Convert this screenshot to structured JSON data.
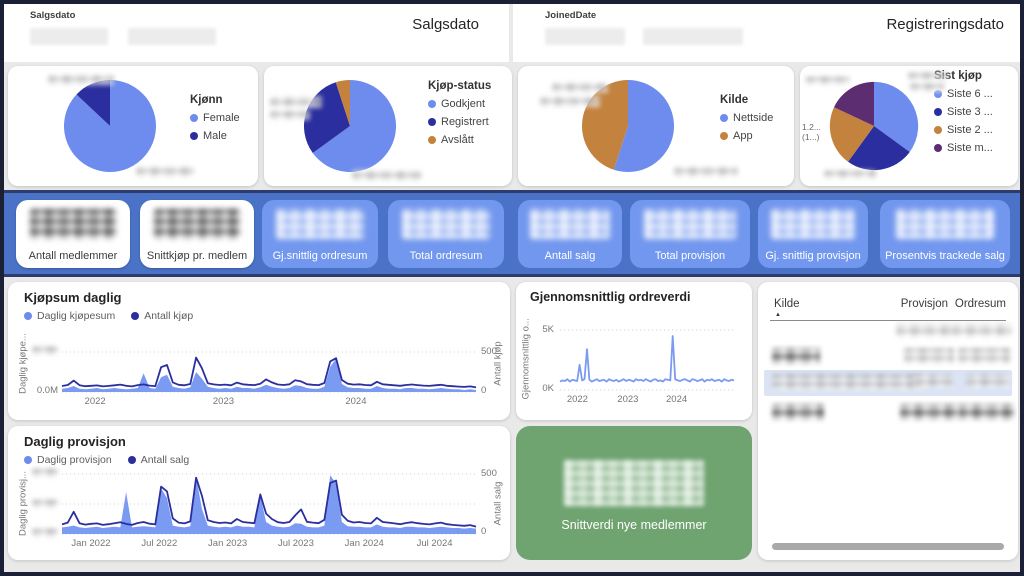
{
  "slicers": {
    "sales": {
      "field_label": "Salgsdato",
      "title": "Salgsdato"
    },
    "joined": {
      "field_label": "JoinedDate",
      "title": "Registreringsdato"
    }
  },
  "pies": [
    {
      "id": "kjonn",
      "legend_title": "Kjønn",
      "slices": [
        {
          "label": "Female",
          "value": 87,
          "color": "#6d8cee"
        },
        {
          "label": "Male",
          "value": 13,
          "color": "#2b2e9e"
        }
      ]
    },
    {
      "id": "kjopstatus",
      "legend_title": "Kjøp-status",
      "slices": [
        {
          "label": "Godkjent",
          "value": 65,
          "color": "#6d8cee"
        },
        {
          "label": "Registrert",
          "value": 30,
          "color": "#2b2e9e"
        },
        {
          "label": "Avslått",
          "value": 5,
          "color": "#c4823f"
        }
      ]
    },
    {
      "id": "kilde",
      "legend_title": "Kilde",
      "slices": [
        {
          "label": "Nettside",
          "value": 55,
          "color": "#6d8cee"
        },
        {
          "label": "App",
          "value": 45,
          "color": "#c4823f"
        }
      ]
    },
    {
      "id": "sistkjop",
      "legend_title": "Sist kjøp",
      "visible_callout": "1.2...\n(1...)",
      "slices": [
        {
          "label": "Siste 6 ...",
          "value": 35,
          "color": "#6d8cee"
        },
        {
          "label": "Siste 3 ...",
          "value": 25,
          "color": "#2b2e9e"
        },
        {
          "label": "Siste 2 ...",
          "value": 22,
          "color": "#c4823f"
        },
        {
          "label": "Siste m...",
          "value": 18,
          "color": "#5c2d70"
        }
      ]
    }
  ],
  "kpis": [
    {
      "label": "Antall medlemmer",
      "style": "white"
    },
    {
      "label": "Snittkjøp pr. medlem",
      "style": "white"
    },
    {
      "label": "Gj.snittlig ordresum",
      "style": "blue"
    },
    {
      "label": "Total ordresum",
      "style": "blue"
    },
    {
      "label": "Antall salg",
      "style": "blue"
    },
    {
      "label": "Total provisjon",
      "style": "blue"
    },
    {
      "label": "Gj. snittlig provisjon",
      "style": "blue"
    },
    {
      "label": "Prosentvis trackede salg",
      "style": "blue"
    }
  ],
  "chart_data": [
    {
      "id": "kjopsum",
      "type": "area",
      "title": "Kjøpsum daglig",
      "legend": [
        {
          "label": "Daglig kjøpesum",
          "color": "#6d8cee"
        },
        {
          "label": "Antall kjøp",
          "color": "#2b2e9e"
        }
      ],
      "y_left": {
        "label": "Daglig kjøpe...",
        "max": 0.6,
        "ticks": [
          "0.0M"
        ],
        "top_tick_redacted": true
      },
      "y_right": {
        "label": "Antall kjøp",
        "max": 500,
        "ticks": [
          "500",
          "0"
        ]
      },
      "x_ticks": [
        {
          "label": "2022",
          "f": 0.08
        },
        {
          "label": "2023",
          "f": 0.39
        },
        {
          "label": "2024",
          "f": 0.71
        }
      ],
      "series": [
        {
          "name": "Daglig kjøpesum",
          "axis": "left",
          "color": "#7b9af1",
          "fill": true,
          "values": [
            0.05,
            0.06,
            0.09,
            0.05,
            0.04,
            0.05,
            0.06,
            0.04,
            0.05,
            0.06,
            0.05,
            0.04,
            0.05,
            0.06,
            0.28,
            0.06,
            0.05,
            0.22,
            0.26,
            0.08,
            0.06,
            0.05,
            0.07,
            0.3,
            0.2,
            0.08,
            0.06,
            0.05,
            0.06,
            0.05,
            0.08,
            0.06,
            0.06,
            0.05,
            0.07,
            0.11,
            0.08,
            0.06,
            0.05,
            0.06,
            0.1,
            0.09,
            0.06,
            0.05,
            0.05,
            0.08,
            0.38,
            0.5,
            0.12,
            0.07,
            0.06,
            0.06,
            0.05,
            0.05,
            0.09,
            0.06,
            0.05,
            0.05,
            0.04,
            0.06,
            0.06,
            0.05,
            0.05,
            0.04,
            0.05,
            0.06,
            0.05,
            0.04,
            0.04,
            0.03,
            0.04,
            0.03
          ]
        },
        {
          "name": "Antall kjøp",
          "axis": "right",
          "color": "#2b2e9e",
          "fill": false,
          "values": [
            75,
            88,
            142,
            85,
            72,
            78,
            82,
            70,
            76,
            84,
            92,
            78,
            70,
            86,
            95,
            80,
            74,
            310,
            338,
            120,
            90,
            84,
            100,
            430,
            298,
            110,
            95,
            88,
            92,
            84,
            118,
            96,
            90,
            86,
            102,
            158,
            120,
            94,
            88,
            96,
            148,
            132,
            98,
            90,
            86,
            112,
            382,
            422,
            150,
            104,
            92,
            96,
            88,
            84,
            128,
            96,
            90,
            84,
            78,
            88,
            94,
            86,
            80,
            76,
            84,
            90,
            78,
            72,
            68,
            64,
            70,
            58
          ]
        }
      ]
    },
    {
      "id": "ordreverdi",
      "type": "line",
      "title": "Gjennomsnittlig ordreverdi",
      "y_left": {
        "label": "Gjennomsnittlig o...",
        "max": 5,
        "ticks": [
          "5K",
          "0K"
        ]
      },
      "x_ticks": [
        {
          "label": "2022",
          "f": 0.1
        },
        {
          "label": "2023",
          "f": 0.39
        },
        {
          "label": "2024",
          "f": 0.67
        }
      ],
      "series": [
        {
          "name": "Gjennomsnittlig ordreverdi",
          "axis": "left",
          "color": "#7b9af1",
          "fill": false,
          "values": [
            0.7,
            0.8,
            0.75,
            0.9,
            0.7,
            0.85,
            0.8,
            0.75,
            2.1,
            0.8,
            0.9,
            3.4,
            0.85,
            0.7,
            0.8,
            0.9,
            0.75,
            0.8,
            0.85,
            0.7,
            0.9,
            0.8,
            0.75,
            0.85,
            0.7,
            0.8,
            0.9,
            0.75,
            0.85,
            0.8,
            0.7,
            0.9,
            0.8,
            0.85,
            0.75,
            0.9,
            0.8,
            0.7,
            0.85,
            0.9,
            0.75,
            0.8,
            0.7,
            0.9,
            0.85,
            0.8,
            4.5,
            0.9,
            0.8,
            0.75,
            0.85,
            0.9,
            0.8,
            0.7,
            0.9,
            0.85,
            0.75,
            0.8,
            0.9,
            0.7,
            0.85,
            0.8,
            0.9,
            0.75,
            0.8,
            0.85,
            0.7,
            0.9,
            0.8,
            0.75,
            0.85,
            0.8
          ]
        }
      ]
    },
    {
      "id": "provisjon",
      "type": "area",
      "title": "Daglig provisjon",
      "legend": [
        {
          "label": "Daglig provisjon",
          "color": "#6d8cee"
        },
        {
          "label": "Antall salg",
          "color": "#2b2e9e"
        }
      ],
      "y_left": {
        "label": "Daglig provisj...",
        "max": 500,
        "ticks_redacted": 3
      },
      "y_right": {
        "label": "Antall salg",
        "max": 500,
        "ticks": [
          "500",
          "0"
        ]
      },
      "x_ticks": [
        {
          "label": "Jan 2022",
          "f": 0.07
        },
        {
          "label": "Jul 2022",
          "f": 0.235
        },
        {
          "label": "Jan 2023",
          "f": 0.4
        },
        {
          "label": "Jul 2023",
          "f": 0.565
        },
        {
          "label": "Jan 2024",
          "f": 0.73
        },
        {
          "label": "Jul 2024",
          "f": 0.9
        }
      ],
      "series": [
        {
          "name": "Daglig provisjon",
          "axis": "left",
          "color": "#7b9af1",
          "fill": true,
          "values": [
            55,
            60,
            70,
            55,
            50,
            55,
            60,
            50,
            55,
            60,
            55,
            350,
            55,
            60,
            65,
            60,
            55,
            380,
            300,
            70,
            60,
            55,
            65,
            480,
            210,
            70,
            60,
            55,
            60,
            55,
            70,
            60,
            60,
            55,
            320,
            100,
            70,
            60,
            55,
            60,
            90,
            85,
            60,
            55,
            55,
            70,
            490,
            420,
            100,
            65,
            60,
            60,
            55,
            55,
            80,
            60,
            55,
            55,
            50,
            60,
            60,
            55,
            55,
            50,
            55,
            60,
            55,
            50,
            50,
            45,
            50,
            45
          ]
        },
        {
          "name": "Antall salg",
          "axis": "right",
          "color": "#2b2e9e",
          "fill": false,
          "values": [
            80,
            95,
            185,
            90,
            78,
            85,
            88,
            76,
            82,
            90,
            98,
            84,
            76,
            92,
            100,
            86,
            80,
            395,
            355,
            130,
            95,
            88,
            105,
            470,
            320,
            115,
            100,
            92,
            96,
            88,
            125,
            100,
            95,
            90,
            330,
            170,
            125,
            98,
            92,
            100,
            155,
            205,
            102,
            95,
            90,
            118,
            425,
            445,
            160,
            110,
            96,
            100,
            92,
            88,
            135,
            100,
            95,
            88,
            82,
            92,
            98,
            90,
            84,
            80,
            88,
            95,
            82,
            76,
            72,
            68,
            74,
            62
          ]
        }
      ]
    }
  ],
  "table": {
    "columns": [
      {
        "label": "Kilde",
        "sorted": "asc"
      },
      {
        "label": "Provisjon"
      },
      {
        "label": "Ordresum"
      }
    ],
    "redacted_rows": 4
  },
  "green_card": {
    "label": "Snittverdi nye medlemmer"
  },
  "icons": {
    "sort_ascending": "▲"
  },
  "colors": {
    "accent_blue": "#6d8cee",
    "dark_blue": "#2b2e9e",
    "orange": "#c4823f",
    "purple": "#5c2d70",
    "band": "#4a73c7",
    "kpi_blue": "#7297ee",
    "green": "#6fa370",
    "frame": "#1b2035"
  }
}
